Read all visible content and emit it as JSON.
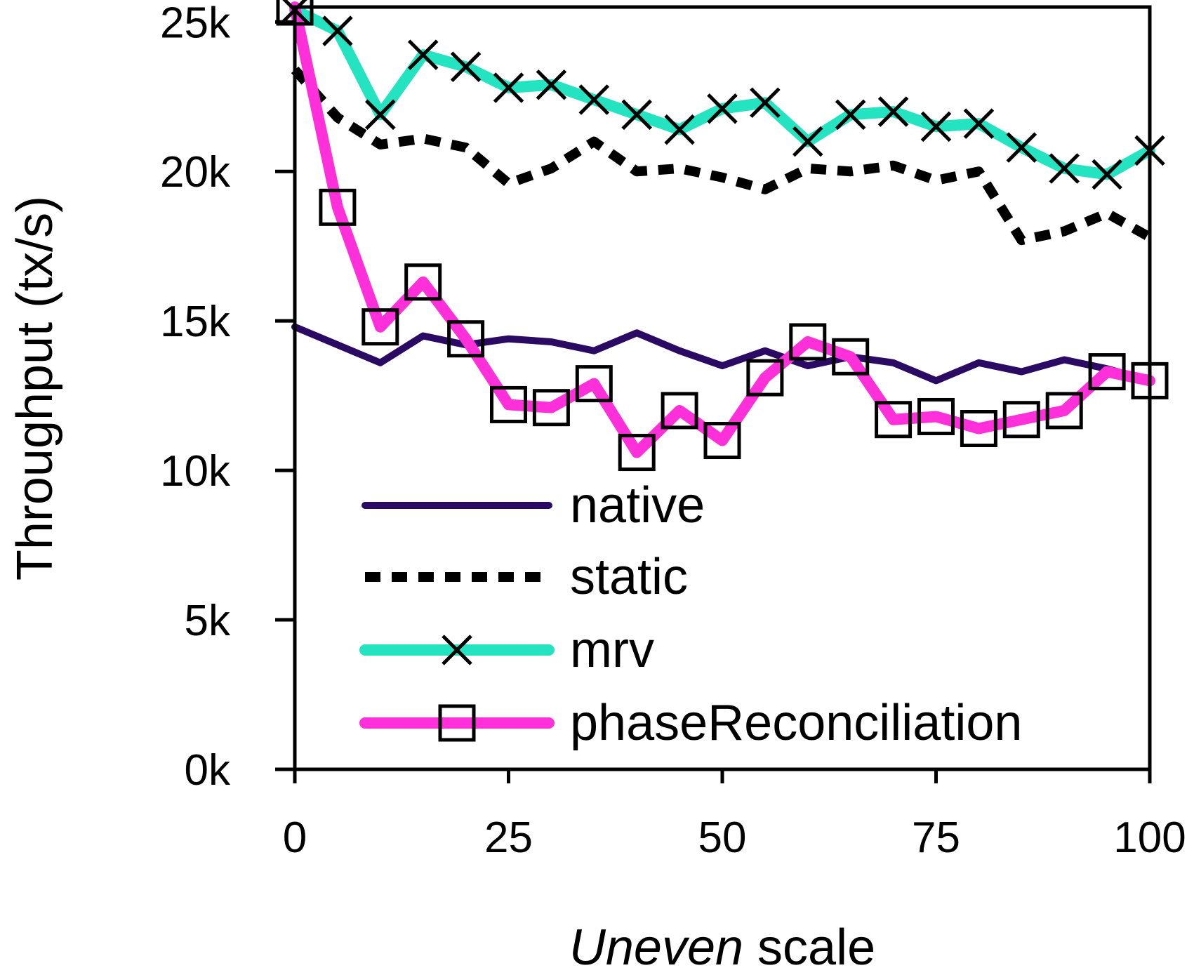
{
  "chart_data": {
    "type": "line",
    "title": "",
    "xlabel_italic": "Uneven",
    "xlabel_rest": " scale",
    "ylabel": "Throughput (tx/s)",
    "xlim": [
      0,
      100
    ],
    "ylim": [
      0,
      25500
    ],
    "x_ticks": [
      0,
      25,
      50,
      75,
      100
    ],
    "x_tick_labels": [
      "0",
      "25",
      "50",
      "75",
      "100"
    ],
    "y_ticks": [
      0,
      5000,
      10000,
      15000,
      20000,
      25000
    ],
    "y_tick_labels": [
      "0k",
      "5k",
      "10k",
      "15k",
      "20k",
      "25k"
    ],
    "grid": false,
    "legend_position": "bottom-center",
    "x": [
      0,
      5,
      10,
      15,
      20,
      25,
      30,
      35,
      40,
      45,
      50,
      55,
      60,
      65,
      70,
      75,
      80,
      85,
      90,
      95,
      100
    ],
    "series": [
      {
        "name": "native",
        "color": "#2a0a63",
        "style": "solid",
        "marker": "none",
        "values": [
          14800,
          14200,
          13600,
          14500,
          14200,
          14400,
          14300,
          14000,
          14600,
          14000,
          13500,
          14000,
          13500,
          13800,
          13600,
          13000,
          13600,
          13300,
          13700,
          13400,
          13000
        ]
      },
      {
        "name": "static",
        "color": "#000000",
        "style": "dashed",
        "marker": "none",
        "values": [
          23400,
          21800,
          20900,
          21100,
          20800,
          19600,
          20100,
          21000,
          20000,
          20100,
          19800,
          19400,
          20100,
          20000,
          20200,
          19700,
          20000,
          17700,
          18000,
          18600,
          17800
        ]
      },
      {
        "name": "mrv",
        "color": "#24e3c0",
        "style": "solid",
        "marker": "x",
        "values": [
          25400,
          24700,
          21900,
          23900,
          23500,
          22800,
          22900,
          22400,
          21900,
          21400,
          22100,
          22300,
          21000,
          21900,
          22000,
          21500,
          21600,
          20800,
          20100,
          19900,
          20700
        ]
      },
      {
        "name": "phaseReconciliation",
        "color": "#ff2fd9",
        "style": "solid",
        "marker": "square",
        "values": [
          25500,
          18800,
          14800,
          16300,
          14400,
          12200,
          12100,
          12900,
          10600,
          12000,
          11000,
          13100,
          14300,
          13800,
          11700,
          11800,
          11400,
          11700,
          12000,
          13300,
          13000
        ]
      }
    ]
  }
}
